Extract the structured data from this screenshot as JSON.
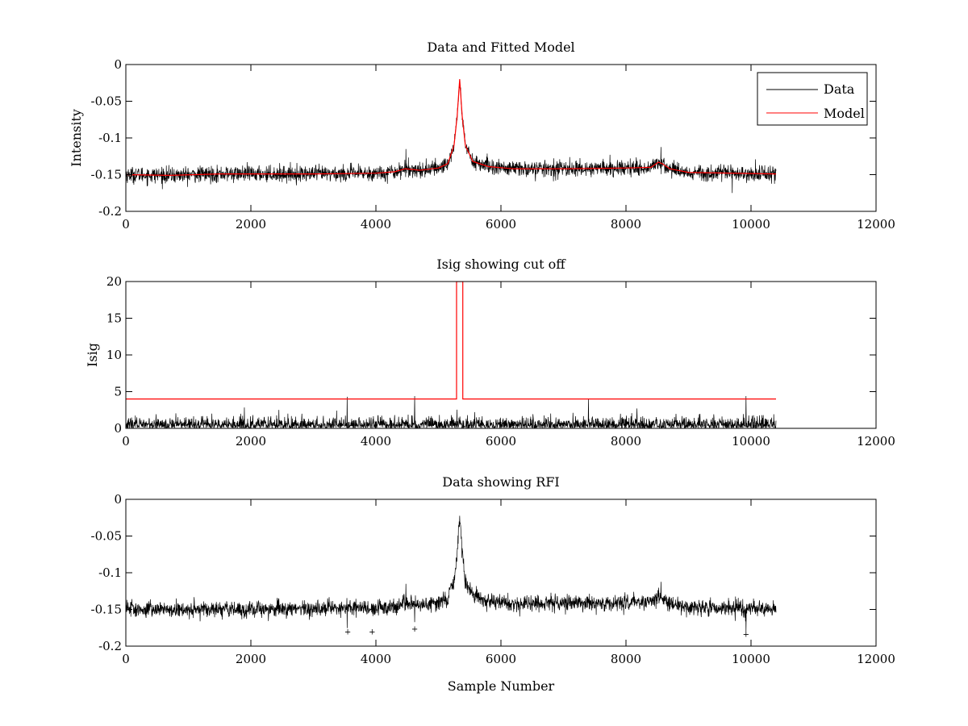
{
  "figure_background": "#ffffff",
  "colors": {
    "data": "#000000",
    "model": "#ff0000",
    "axes": "#000000"
  },
  "chart_data": [
    {
      "type": "line",
      "title": "Data and Fitted Model",
      "xlabel": "",
      "ylabel": "Intensity",
      "xlim": [
        0,
        12000
      ],
      "ylim": [
        -0.2,
        0
      ],
      "xticks": [
        0,
        2000,
        4000,
        6000,
        8000,
        10000,
        12000
      ],
      "xtick_labels": [
        "0",
        "2000",
        "4000",
        "6000",
        "8000",
        "10000",
        "12000"
      ],
      "yticks": [
        -0.2,
        -0.15,
        -0.1,
        -0.05,
        0
      ],
      "ytick_labels": [
        "-0.2",
        "-0.15",
        "-0.1",
        "-0.05",
        "0"
      ],
      "legend": {
        "position": "top-right",
        "entries": [
          "Data",
          "Model"
        ]
      },
      "series": [
        {
          "name": "Data",
          "color": "#000000",
          "kind": "noisy",
          "x_range": [
            0,
            10400
          ],
          "noise_amplitude": 0.012,
          "spikes": [
            [
              4480,
              0.015
            ],
            [
              8560,
              0.01
            ],
            [
              9700,
              -0.015
            ],
            [
              3930,
              -0.01
            ]
          ],
          "baseline_points": [
            [
              0,
              -0.15
            ],
            [
              700,
              -0.151
            ],
            [
              1500,
              -0.149
            ],
            [
              3000,
              -0.149
            ],
            [
              4000,
              -0.148
            ],
            [
              4300,
              -0.146
            ],
            [
              4470,
              -0.142
            ],
            [
              4700,
              -0.144
            ],
            [
              5000,
              -0.141
            ],
            [
              5150,
              -0.135
            ],
            [
              5250,
              -0.11
            ],
            [
              5300,
              -0.07
            ],
            [
              5340,
              -0.02
            ],
            [
              5380,
              -0.07
            ],
            [
              5430,
              -0.11
            ],
            [
              5550,
              -0.132
            ],
            [
              5800,
              -0.139
            ],
            [
              6200,
              -0.142
            ],
            [
              7000,
              -0.142
            ],
            [
              8000,
              -0.141
            ],
            [
              8400,
              -0.14
            ],
            [
              8520,
              -0.133
            ],
            [
              8580,
              -0.135
            ],
            [
              8700,
              -0.142
            ],
            [
              9000,
              -0.147
            ],
            [
              10400,
              -0.149
            ]
          ]
        },
        {
          "name": "Model",
          "color": "#ff0000",
          "kind": "line",
          "points": [
            [
              0,
              -0.15
            ],
            [
              700,
              -0.151
            ],
            [
              1500,
              -0.149
            ],
            [
              3000,
              -0.149
            ],
            [
              4000,
              -0.148
            ],
            [
              4300,
              -0.146
            ],
            [
              4470,
              -0.142
            ],
            [
              4700,
              -0.144
            ],
            [
              5000,
              -0.141
            ],
            [
              5150,
              -0.135
            ],
            [
              5250,
              -0.11
            ],
            [
              5300,
              -0.07
            ],
            [
              5340,
              -0.02
            ],
            [
              5380,
              -0.07
            ],
            [
              5430,
              -0.11
            ],
            [
              5550,
              -0.132
            ],
            [
              5800,
              -0.139
            ],
            [
              6200,
              -0.142
            ],
            [
              7000,
              -0.142
            ],
            [
              8000,
              -0.141
            ],
            [
              8400,
              -0.14
            ],
            [
              8520,
              -0.133
            ],
            [
              8580,
              -0.135
            ],
            [
              8700,
              -0.142
            ],
            [
              9000,
              -0.147
            ],
            [
              10400,
              -0.149
            ]
          ]
        }
      ]
    },
    {
      "type": "line",
      "title": "Isig showing cut off",
      "xlabel": "",
      "ylabel": "Isig",
      "xlim": [
        0,
        12000
      ],
      "ylim": [
        0,
        20
      ],
      "xticks": [
        0,
        2000,
        4000,
        6000,
        8000,
        10000,
        12000
      ],
      "xtick_labels": [
        "0",
        "2000",
        "4000",
        "6000",
        "8000",
        "10000",
        "12000"
      ],
      "yticks": [
        0,
        5,
        10,
        15,
        20
      ],
      "ytick_labels": [
        "0",
        "5",
        "10",
        "15",
        "20"
      ],
      "series": [
        {
          "color": "#000000",
          "kind": "abs-noise",
          "x_range": [
            0,
            10400
          ],
          "noise_amplitude": 1.3,
          "spikes": [
            [
              3540,
              4.3
            ],
            [
              3930,
              4.2
            ],
            [
              4620,
              4.4
            ],
            [
              5330,
              2.9
            ],
            [
              7400,
              4.0
            ],
            [
              9920,
              4.4
            ]
          ]
        },
        {
          "color": "#ff0000",
          "kind": "line",
          "points": [
            [
              0,
              4
            ],
            [
              5290,
              4
            ],
            [
              5290,
              20
            ],
            [
              5390,
              20
            ],
            [
              5390,
              4
            ],
            [
              10400,
              4
            ]
          ]
        }
      ]
    },
    {
      "type": "line",
      "title": "Data showing RFI",
      "xlabel": "Sample Number",
      "ylabel": "",
      "xlim": [
        0,
        12000
      ],
      "ylim": [
        -0.2,
        0
      ],
      "xticks": [
        0,
        2000,
        4000,
        6000,
        8000,
        10000,
        12000
      ],
      "xtick_labels": [
        "0",
        "2000",
        "4000",
        "6000",
        "8000",
        "10000",
        "12000"
      ],
      "yticks": [
        -0.2,
        -0.15,
        -0.1,
        -0.05,
        0
      ],
      "ytick_labels": [
        "-0.2",
        "-0.15",
        "-0.1",
        "-0.05",
        "0"
      ],
      "series": [
        {
          "color": "#000000",
          "kind": "noisy",
          "x_range": [
            0,
            10400
          ],
          "noise_amplitude": 0.012,
          "spikes": [
            [
              4480,
              0.015
            ],
            [
              8560,
              0.01
            ],
            [
              9920,
              -0.02
            ],
            [
              3540,
              -0.015
            ],
            [
              3930,
              -0.012
            ],
            [
              4620,
              -0.012
            ]
          ],
          "baseline_points": [
            [
              0,
              -0.15
            ],
            [
              700,
              -0.151
            ],
            [
              1500,
              -0.149
            ],
            [
              3000,
              -0.149
            ],
            [
              4000,
              -0.148
            ],
            [
              4300,
              -0.146
            ],
            [
              4470,
              -0.142
            ],
            [
              4700,
              -0.144
            ],
            [
              5000,
              -0.141
            ],
            [
              5150,
              -0.135
            ],
            [
              5250,
              -0.11
            ],
            [
              5300,
              -0.07
            ],
            [
              5340,
              -0.02
            ],
            [
              5380,
              -0.07
            ],
            [
              5430,
              -0.11
            ],
            [
              5550,
              -0.132
            ],
            [
              5800,
              -0.139
            ],
            [
              6200,
              -0.142
            ],
            [
              7000,
              -0.142
            ],
            [
              8000,
              -0.141
            ],
            [
              8400,
              -0.14
            ],
            [
              8520,
              -0.133
            ],
            [
              8580,
              -0.135
            ],
            [
              8700,
              -0.142
            ],
            [
              9000,
              -0.147
            ],
            [
              10400,
              -0.149
            ]
          ]
        },
        {
          "color": "#ff0000",
          "kind": "scatter",
          "points": [
            [
              3550,
              -0.181
            ],
            [
              3940,
              -0.181
            ],
            [
              4620,
              -0.177
            ],
            [
              9920,
              -0.184
            ]
          ]
        }
      ]
    }
  ]
}
